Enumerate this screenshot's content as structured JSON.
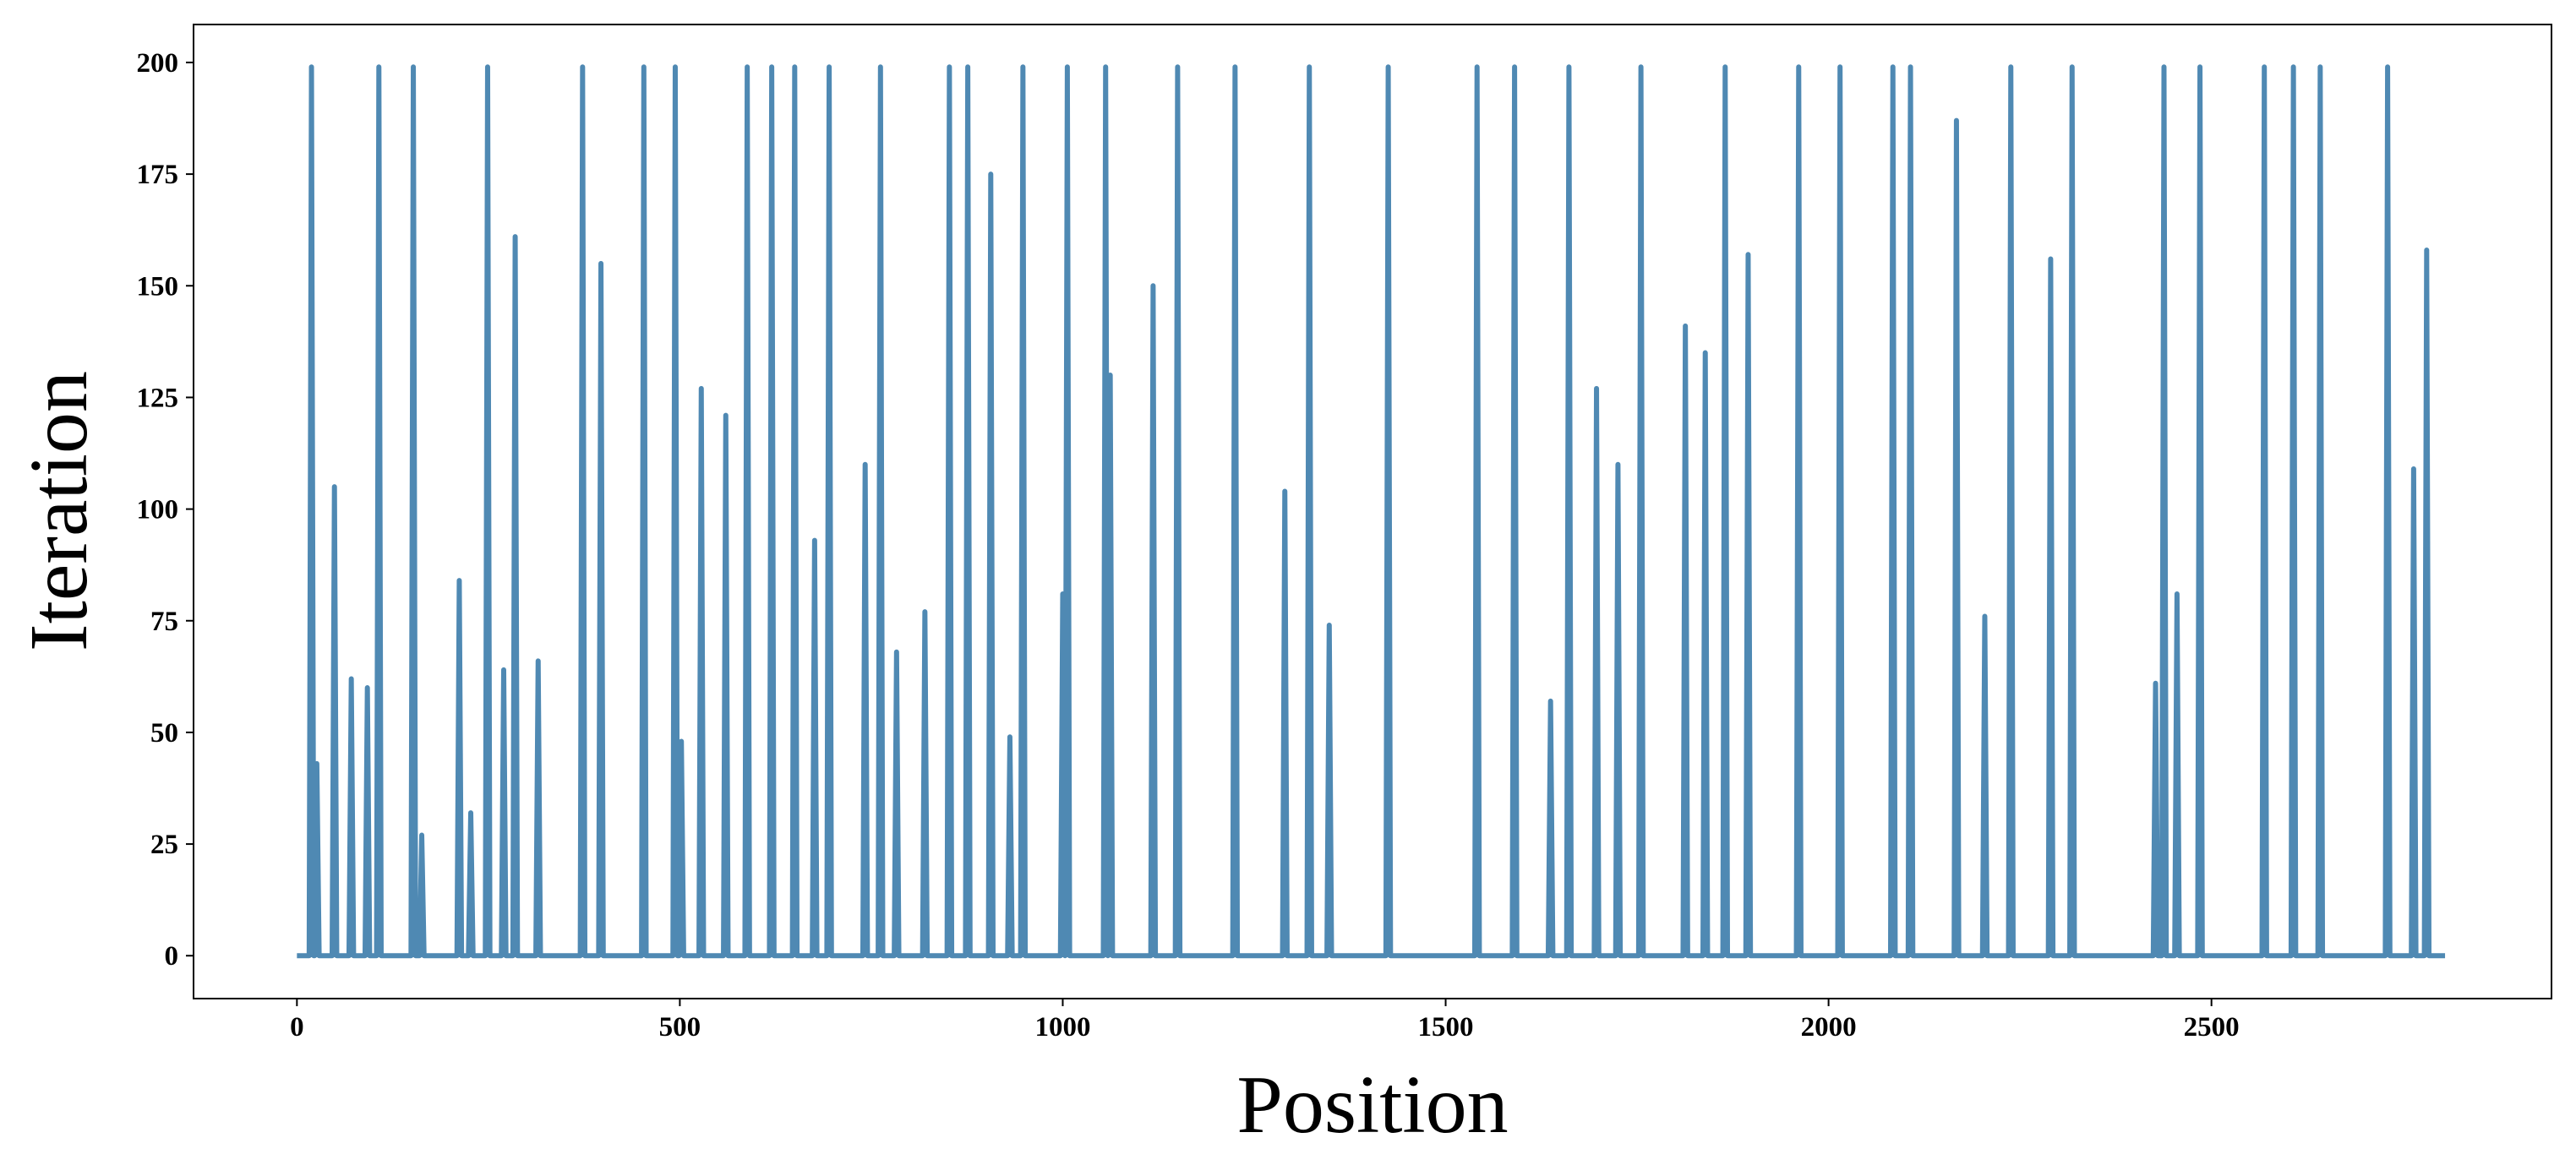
{
  "chart_data": {
    "type": "line",
    "xlabel": "Position",
    "ylabel": "Iteration",
    "color": "#4f89b3",
    "xlim": [
      -135,
      2944
    ],
    "ylim": [
      -9.6,
      208.5
    ],
    "xticks": [
      0,
      500,
      1000,
      1500,
      2000,
      2500
    ],
    "yticks": [
      0,
      25,
      50,
      75,
      100,
      125,
      150,
      175,
      200
    ],
    "x": [
      0,
      16,
      19,
      22,
      23,
      26,
      29,
      46,
      49,
      52,
      68,
      71,
      74,
      89,
      92,
      95,
      104,
      107,
      110,
      149,
      152,
      155,
      160,
      163,
      166,
      209,
      212,
      215,
      224,
      227,
      230,
      246,
      249,
      252,
      267,
      270,
      273,
      282,
      285,
      288,
      312,
      315,
      318,
      370,
      373,
      376,
      394,
      397,
      400,
      450,
      453,
      456,
      491,
      494,
      497,
      499,
      502,
      505,
      525,
      528,
      531,
      557,
      560,
      563,
      585,
      588,
      591,
      617,
      620,
      623,
      647,
      650,
      653,
      673,
      676,
      679,
      692,
      695,
      698,
      739,
      742,
      745,
      759,
      762,
      765,
      780,
      783,
      786,
      817,
      820,
      823,
      849,
      852,
      855,
      873,
      876,
      879,
      903,
      906,
      909,
      928,
      931,
      934,
      945,
      948,
      951,
      997,
      1000,
      1003,
      1003,
      1006,
      1009,
      1053,
      1056,
      1059,
      1059,
      1062,
      1065,
      1115,
      1118,
      1121,
      1147,
      1150,
      1153,
      1222,
      1225,
      1228,
      1287,
      1290,
      1293,
      1319,
      1322,
      1325,
      1345,
      1348,
      1351,
      1422,
      1425,
      1428,
      1538,
      1541,
      1544,
      1587,
      1590,
      1593,
      1634,
      1637,
      1640,
      1658,
      1661,
      1664,
      1694,
      1697,
      1700,
      1722,
      1725,
      1728,
      1752,
      1755,
      1758,
      1810,
      1813,
      1816,
      1836,
      1839,
      1842,
      1862,
      1865,
      1868,
      1892,
      1895,
      1898,
      1958,
      1961,
      1964,
      2012,
      2015,
      2018,
      2081,
      2084,
      2087,
      2104,
      2107,
      2110,
      2164,
      2167,
      2170,
      2201,
      2204,
      2207,
      2235,
      2238,
      2241,
      2287,
      2290,
      2293,
      2315,
      2318,
      2321,
      2424,
      2427,
      2430,
      2435,
      2438,
      2441,
      2452,
      2455,
      2458,
      2482,
      2485,
      2488,
      2566,
      2569,
      2572,
      2604,
      2607,
      2610,
      2639,
      2642,
      2645,
      2727,
      2730,
      2733,
      2761,
      2764,
      2767,
      2778,
      2781,
      2784,
      2805
    ],
    "values": [
      0,
      0,
      199,
      0,
      0,
      43,
      0,
      0,
      105,
      0,
      0,
      62,
      0,
      0,
      60,
      0,
      0,
      199,
      0,
      0,
      199,
      0,
      0,
      27,
      0,
      0,
      84,
      0,
      0,
      32,
      0,
      0,
      199,
      0,
      0,
      64,
      0,
      0,
      161,
      0,
      0,
      66,
      0,
      0,
      199,
      0,
      0,
      155,
      0,
      0,
      199,
      0,
      0,
      199,
      0,
      0,
      48,
      0,
      0,
      127,
      0,
      0,
      121,
      0,
      0,
      199,
      0,
      0,
      199,
      0,
      0,
      199,
      0,
      0,
      93,
      0,
      0,
      199,
      0,
      0,
      110,
      0,
      0,
      199,
      0,
      0,
      68,
      0,
      0,
      77,
      0,
      0,
      199,
      0,
      0,
      199,
      0,
      0,
      175,
      0,
      0,
      49,
      0,
      0,
      199,
      0,
      0,
      81,
      0,
      0,
      199,
      0,
      0,
      199,
      0,
      0,
      130,
      0,
      0,
      150,
      0,
      0,
      199,
      0,
      0,
      199,
      0,
      0,
      104,
      0,
      0,
      199,
      0,
      0,
      74,
      0,
      0,
      199,
      0,
      0,
      199,
      0,
      0,
      199,
      0,
      0,
      57,
      0,
      0,
      199,
      0,
      0,
      127,
      0,
      0,
      110,
      0,
      0,
      199,
      0,
      0,
      141,
      0,
      0,
      135,
      0,
      0,
      199,
      0,
      0,
      157,
      0,
      0,
      199,
      0,
      0,
      199,
      0,
      0,
      199,
      0,
      0,
      199,
      0,
      0,
      187,
      0,
      0,
      76,
      0,
      0,
      199,
      0,
      0,
      156,
      0,
      0,
      199,
      0,
      0,
      61,
      0,
      0,
      199,
      0,
      0,
      81,
      0,
      0,
      199,
      0,
      0,
      199,
      0,
      0,
      199,
      0,
      0,
      199,
      0,
      0,
      199,
      0,
      0,
      109,
      0,
      0,
      158,
      0,
      0
    ]
  }
}
